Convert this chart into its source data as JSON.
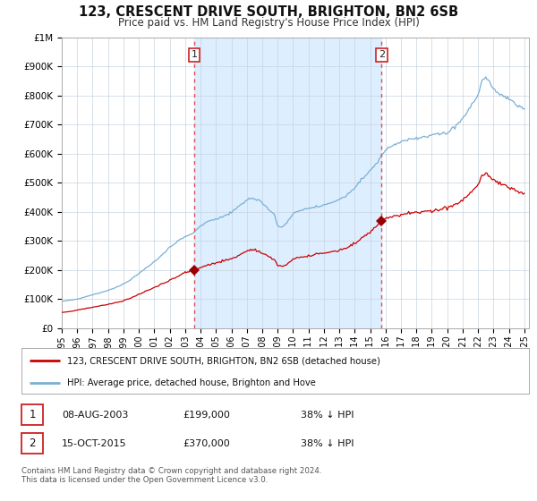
{
  "title": "123, CRESCENT DRIVE SOUTH, BRIGHTON, BN2 6SB",
  "subtitle": "Price paid vs. HM Land Registry's House Price Index (HPI)",
  "legend_line1": "123, CRESCENT DRIVE SOUTH, BRIGHTON, BN2 6SB (detached house)",
  "legend_line2": "HPI: Average price, detached house, Brighton and Hove",
  "annotation1_label": "1",
  "annotation1_date": "08-AUG-2003",
  "annotation1_price": "£199,000",
  "annotation1_hpi": "38% ↓ HPI",
  "annotation2_label": "2",
  "annotation2_date": "15-OCT-2015",
  "annotation2_price": "£370,000",
  "annotation2_hpi": "38% ↓ HPI",
  "footer": "Contains HM Land Registry data © Crown copyright and database right 2024.\nThis data is licensed under the Open Government Licence v3.0.",
  "hpi_line_color": "#7bafd4",
  "price_color": "#cc0000",
  "highlight_color": "#ddeeff",
  "vline_color": "#e05050",
  "marker_color": "#990000",
  "background_color": "#ffffff",
  "grid_color": "#c8d4e0",
  "sale1_x": 2003.583,
  "sale1_y": 199000,
  "sale2_x": 2015.75,
  "sale2_y": 370000,
  "xmin": 1995.0,
  "xmax": 2025.3,
  "ylim": [
    0,
    1000000
  ],
  "yticks": [
    0,
    100000,
    200000,
    300000,
    400000,
    500000,
    600000,
    700000,
    800000,
    900000,
    1000000
  ],
  "ytick_labels": [
    "£0",
    "£100K",
    "£200K",
    "£300K",
    "£400K",
    "£500K",
    "£600K",
    "£700K",
    "£800K",
    "£900K",
    "£1M"
  ],
  "xticks": [
    1995,
    1996,
    1997,
    1998,
    1999,
    2000,
    2001,
    2002,
    2003,
    2004,
    2005,
    2006,
    2007,
    2008,
    2009,
    2010,
    2011,
    2012,
    2013,
    2014,
    2015,
    2016,
    2017,
    2018,
    2019,
    2020,
    2021,
    2022,
    2023,
    2024,
    2025
  ],
  "hpi_anchors": [
    [
      1995.0,
      92000
    ],
    [
      1995.5,
      96000
    ],
    [
      1996.0,
      100000
    ],
    [
      1996.5,
      107000
    ],
    [
      1997.0,
      115000
    ],
    [
      1997.5,
      122000
    ],
    [
      1998.0,
      130000
    ],
    [
      1998.5,
      140000
    ],
    [
      1999.0,
      152000
    ],
    [
      1999.5,
      168000
    ],
    [
      2000.0,
      188000
    ],
    [
      2000.5,
      208000
    ],
    [
      2001.0,
      228000
    ],
    [
      2001.5,
      252000
    ],
    [
      2002.0,
      278000
    ],
    [
      2002.5,
      298000
    ],
    [
      2003.0,
      316000
    ],
    [
      2003.5,
      325000
    ],
    [
      2004.0,
      352000
    ],
    [
      2004.5,
      368000
    ],
    [
      2005.0,
      375000
    ],
    [
      2005.5,
      385000
    ],
    [
      2006.0,
      398000
    ],
    [
      2006.5,
      420000
    ],
    [
      2007.0,
      442000
    ],
    [
      2007.4,
      447000
    ],
    [
      2007.8,
      440000
    ],
    [
      2008.3,
      415000
    ],
    [
      2008.8,
      390000
    ],
    [
      2009.0,
      352000
    ],
    [
      2009.3,
      348000
    ],
    [
      2009.6,
      362000
    ],
    [
      2010.0,
      395000
    ],
    [
      2010.5,
      405000
    ],
    [
      2011.0,
      412000
    ],
    [
      2011.5,
      418000
    ],
    [
      2012.0,
      422000
    ],
    [
      2012.5,
      432000
    ],
    [
      2013.0,
      442000
    ],
    [
      2013.5,
      458000
    ],
    [
      2014.0,
      482000
    ],
    [
      2014.5,
      515000
    ],
    [
      2015.0,
      542000
    ],
    [
      2015.5,
      572000
    ],
    [
      2015.75,
      595000
    ],
    [
      2016.0,
      612000
    ],
    [
      2016.5,
      628000
    ],
    [
      2017.0,
      642000
    ],
    [
      2017.5,
      652000
    ],
    [
      2018.0,
      652000
    ],
    [
      2018.5,
      656000
    ],
    [
      2019.0,
      662000
    ],
    [
      2019.5,
      670000
    ],
    [
      2020.0,
      672000
    ],
    [
      2020.5,
      692000
    ],
    [
      2021.0,
      722000
    ],
    [
      2021.5,
      762000
    ],
    [
      2022.0,
      802000
    ],
    [
      2022.25,
      852000
    ],
    [
      2022.5,
      862000
    ],
    [
      2022.75,
      848000
    ],
    [
      2023.0,
      822000
    ],
    [
      2023.5,
      800000
    ],
    [
      2024.0,
      788000
    ],
    [
      2024.5,
      770000
    ],
    [
      2025.0,
      755000
    ]
  ],
  "price_anchors": [
    [
      1995.0,
      54000
    ],
    [
      1995.5,
      57000
    ],
    [
      1996.0,
      62000
    ],
    [
      1996.5,
      67000
    ],
    [
      1997.0,
      72000
    ],
    [
      1997.5,
      77000
    ],
    [
      1998.0,
      82000
    ],
    [
      1998.5,
      88000
    ],
    [
      1999.0,
      94000
    ],
    [
      1999.5,
      104000
    ],
    [
      2000.0,
      116000
    ],
    [
      2000.5,
      128000
    ],
    [
      2001.0,
      140000
    ],
    [
      2001.5,
      152000
    ],
    [
      2002.0,
      164000
    ],
    [
      2002.5,
      178000
    ],
    [
      2003.0,
      192000
    ],
    [
      2003.58,
      199000
    ],
    [
      2004.0,
      208000
    ],
    [
      2004.5,
      218000
    ],
    [
      2005.0,
      224000
    ],
    [
      2005.5,
      232000
    ],
    [
      2006.0,
      238000
    ],
    [
      2006.5,
      252000
    ],
    [
      2007.0,
      265000
    ],
    [
      2007.4,
      270000
    ],
    [
      2007.8,
      264000
    ],
    [
      2008.3,
      250000
    ],
    [
      2008.8,
      235000
    ],
    [
      2009.0,
      215000
    ],
    [
      2009.3,
      212000
    ],
    [
      2009.6,
      220000
    ],
    [
      2010.0,
      238000
    ],
    [
      2010.5,
      244000
    ],
    [
      2011.0,
      248000
    ],
    [
      2011.5,
      254000
    ],
    [
      2012.0,
      258000
    ],
    [
      2012.5,
      262000
    ],
    [
      2013.0,
      268000
    ],
    [
      2013.5,
      276000
    ],
    [
      2014.0,
      291000
    ],
    [
      2014.5,
      312000
    ],
    [
      2015.0,
      330000
    ],
    [
      2015.5,
      355000
    ],
    [
      2015.75,
      370000
    ],
    [
      2016.0,
      376000
    ],
    [
      2016.5,
      386000
    ],
    [
      2017.0,
      391000
    ],
    [
      2017.5,
      396000
    ],
    [
      2018.0,
      396000
    ],
    [
      2018.5,
      399000
    ],
    [
      2019.0,
      403000
    ],
    [
      2019.5,
      409000
    ],
    [
      2020.0,
      413000
    ],
    [
      2020.5,
      426000
    ],
    [
      2021.0,
      441000
    ],
    [
      2021.5,
      466000
    ],
    [
      2022.0,
      492000
    ],
    [
      2022.25,
      526000
    ],
    [
      2022.5,
      532000
    ],
    [
      2022.75,
      522000
    ],
    [
      2023.0,
      507000
    ],
    [
      2023.5,
      494000
    ],
    [
      2024.0,
      487000
    ],
    [
      2024.5,
      474000
    ],
    [
      2025.0,
      464000
    ]
  ]
}
